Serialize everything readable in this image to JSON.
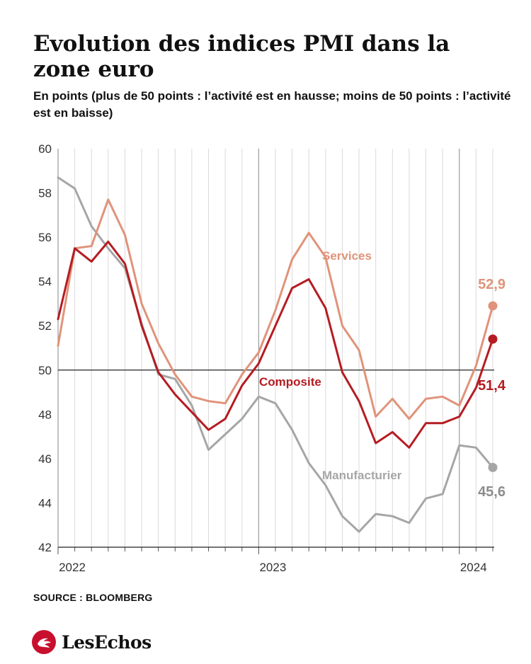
{
  "header": {
    "title": "Evolution des indices PMI dans la zone euro",
    "subtitle": "En points (plus de 50 points : l’activité est en hausse; moins de 50 points : l’activité est en baisse)"
  },
  "footer": {
    "source": "SOURCE : BLOOMBERG",
    "brand": "LesEchos"
  },
  "colors": {
    "services": "#e0937a",
    "composite": "#b51c22",
    "manufacturier": "#a6a6a6",
    "grid": "#d9d9d9",
    "axis": "#222222",
    "brand": "#c8102e"
  },
  "chart_data": {
    "type": "line",
    "title": "Evolution des indices PMI dans la zone euro",
    "xlabel": "",
    "ylabel": "",
    "ylim": [
      42,
      60
    ],
    "yticks": [
      42,
      44,
      46,
      48,
      50,
      52,
      54,
      56,
      58,
      60
    ],
    "ytick_labels": [
      "42",
      "44",
      "46",
      "48",
      "50",
      "52",
      "54",
      "56",
      "58",
      "60"
    ],
    "xticks": [
      "2022",
      "2023",
      "2024"
    ],
    "x": [
      "2022-01",
      "2022-02",
      "2022-03",
      "2022-04",
      "2022-05",
      "2022-06",
      "2022-07",
      "2022-08",
      "2022-09",
      "2022-10",
      "2022-11",
      "2022-12",
      "2023-01",
      "2023-02",
      "2023-03",
      "2023-04",
      "2023-05",
      "2023-06",
      "2023-07",
      "2023-08",
      "2023-09",
      "2023-10",
      "2023-11",
      "2023-12",
      "2024-01",
      "2024-02",
      "2024-03"
    ],
    "reference_line": 50,
    "grid": "vertical",
    "series": [
      {
        "name": "Services",
        "key": "services",
        "values": [
          51.1,
          55.5,
          55.6,
          57.7,
          56.1,
          53.0,
          51.2,
          49.8,
          48.8,
          48.6,
          48.5,
          49.8,
          50.8,
          52.7,
          55.0,
          56.2,
          55.1,
          52.0,
          50.9,
          47.9,
          48.7,
          47.8,
          48.7,
          48.8,
          48.4,
          50.2,
          52.9
        ],
        "end_label": "52,9"
      },
      {
        "name": "Composite",
        "key": "composite",
        "values": [
          52.3,
          55.5,
          54.9,
          55.8,
          54.8,
          52.0,
          49.9,
          48.9,
          48.1,
          47.3,
          47.8,
          49.3,
          50.3,
          52.0,
          53.7,
          54.1,
          52.8,
          49.9,
          48.6,
          46.7,
          47.2,
          46.5,
          47.6,
          47.6,
          47.9,
          49.2,
          51.4
        ],
        "end_label": "51,4"
      },
      {
        "name": "Manufacturier",
        "key": "manufacturier",
        "values": [
          58.7,
          58.2,
          56.5,
          55.5,
          54.6,
          52.1,
          49.8,
          49.6,
          48.4,
          46.4,
          47.1,
          47.8,
          48.8,
          48.5,
          47.3,
          45.8,
          44.8,
          43.4,
          42.7,
          43.5,
          43.4,
          43.1,
          44.2,
          44.4,
          46.6,
          46.5,
          45.6
        ],
        "end_label": "45,6"
      }
    ]
  }
}
